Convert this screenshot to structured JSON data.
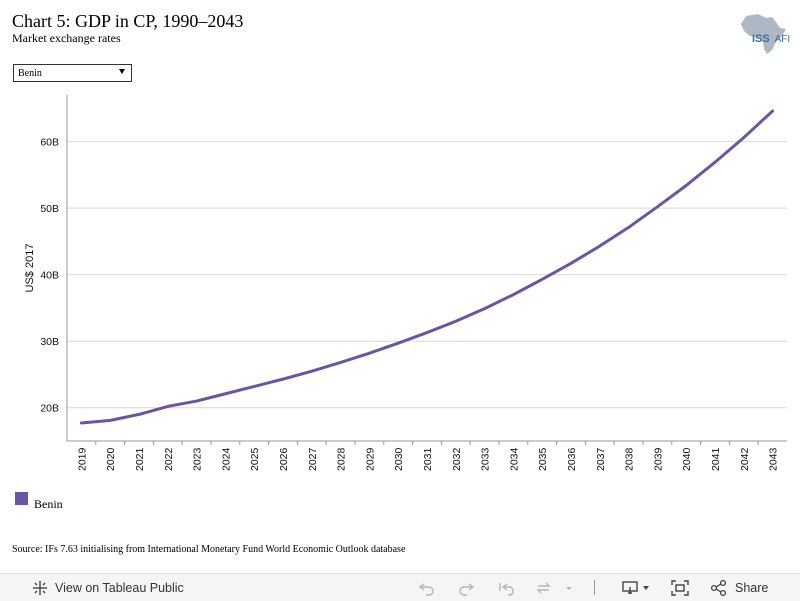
{
  "header": {
    "title": "Chart 5: GDP in CP, 1990–2043",
    "subtitle": "Market exchange rates"
  },
  "logo": {
    "text_main": "ISS",
    "text_sep": "|",
    "text_sub": "AFI",
    "icon": "africa-map-icon"
  },
  "country_select": {
    "value": "Benin",
    "icon": "dropdown-arrow-icon"
  },
  "chart_data": {
    "type": "line",
    "title": "",
    "xlabel": "",
    "ylabel": "US$ 2017",
    "x": [
      "2019",
      "2020",
      "2021",
      "2022",
      "2023",
      "2024",
      "2025",
      "2026",
      "2027",
      "2028",
      "2029",
      "2030",
      "2031",
      "2032",
      "2033",
      "2034",
      "2035",
      "2036",
      "2037",
      "2038",
      "2039",
      "2040",
      "2041",
      "2042",
      "2043"
    ],
    "y_ticks": [
      20,
      30,
      40,
      50,
      60
    ],
    "y_tick_labels": [
      "20B",
      "30B",
      "40B",
      "50B",
      "60B"
    ],
    "ylim": [
      15,
      67
    ],
    "grid": true,
    "legend_position": "bottom-left",
    "series": [
      {
        "name": "Benin",
        "color": "#6a55a5",
        "values": [
          17.7,
          18.1,
          19.0,
          20.2,
          21.0,
          22.1,
          23.2,
          24.3,
          25.5,
          26.8,
          28.2,
          29.7,
          31.3,
          33.0,
          34.9,
          37.0,
          39.3,
          41.7,
          44.3,
          47.1,
          50.2,
          53.4,
          56.9,
          60.6,
          64.6
        ]
      }
    ]
  },
  "legend": {
    "items": [
      {
        "label": "Benin",
        "color": "#6a55a5"
      }
    ]
  },
  "source": "Source: IFs 7.63 initialising from International Monetary Fund World Economic Outlook database",
  "toolbar": {
    "view_label": "View on Tableau Public",
    "share_label": "Share",
    "icons": [
      "tableau-logo-icon",
      "undo-icon",
      "redo-icon",
      "revert-icon",
      "refresh-icon",
      "download-icon",
      "fullscreen-icon",
      "share-icon"
    ]
  }
}
